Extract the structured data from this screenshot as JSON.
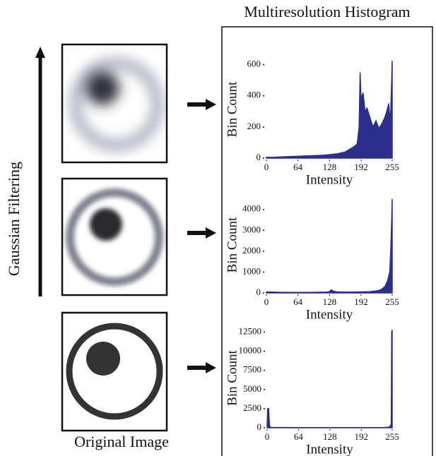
{
  "figure": {
    "title": "Multiresolution Histogram",
    "left_label": "Gaussian Filtering",
    "bottom_label": "Original Image"
  },
  "chart_data": [
    {
      "type": "area",
      "color": "#2b2e8c",
      "xlabel": "Intensity",
      "ylabel": "Bin Count",
      "x": [
        0,
        16,
        32,
        48,
        64,
        80,
        96,
        112,
        128,
        144,
        160,
        176,
        184,
        188,
        190,
        192,
        196,
        200,
        204,
        210,
        216,
        222,
        228,
        234,
        240,
        244,
        248,
        250,
        252,
        254,
        255
      ],
      "values": [
        5,
        6,
        8,
        10,
        12,
        14,
        16,
        18,
        22,
        28,
        40,
        70,
        90,
        200,
        550,
        380,
        420,
        300,
        320,
        260,
        200,
        240,
        190,
        220,
        260,
        300,
        350,
        250,
        300,
        500,
        625
      ],
      "xlim": [
        0,
        255
      ],
      "ylim": [
        0,
        625
      ],
      "xticks": [
        0,
        64,
        128,
        192,
        255
      ],
      "yticks": [
        0,
        200,
        400,
        600
      ]
    },
    {
      "type": "area",
      "color": "#2b2e8c",
      "xlabel": "Intensity",
      "ylabel": "Bin Count",
      "x": [
        0,
        32,
        64,
        96,
        120,
        128,
        132,
        136,
        144,
        160,
        176,
        192,
        208,
        224,
        232,
        240,
        246,
        250,
        252,
        254,
        255
      ],
      "values": [
        50,
        30,
        25,
        30,
        40,
        60,
        150,
        80,
        50,
        40,
        40,
        50,
        60,
        100,
        150,
        300,
        600,
        1000,
        2000,
        3500,
        4500
      ],
      "xlim": [
        0,
        255
      ],
      "ylim": [
        0,
        4600
      ],
      "xticks": [
        0,
        64,
        128,
        192,
        255
      ],
      "yticks": [
        0,
        1000,
        2000,
        3000,
        4000
      ]
    },
    {
      "type": "area",
      "color": "#2b2e8c",
      "xlabel": "Intensity",
      "ylabel": "Bin Count",
      "x": [
        0,
        1,
        3,
        5,
        8,
        64,
        128,
        192,
        240,
        250,
        253,
        254,
        255
      ],
      "values": [
        0,
        2500,
        2500,
        200,
        50,
        30,
        30,
        30,
        40,
        100,
        500,
        12500,
        12800
      ],
      "xlim": [
        0,
        255
      ],
      "ylim": [
        0,
        13000
      ],
      "xticks": [
        0,
        64,
        128,
        192,
        255
      ],
      "yticks": [
        0,
        2500,
        5000,
        7500,
        10000,
        12500
      ]
    }
  ]
}
